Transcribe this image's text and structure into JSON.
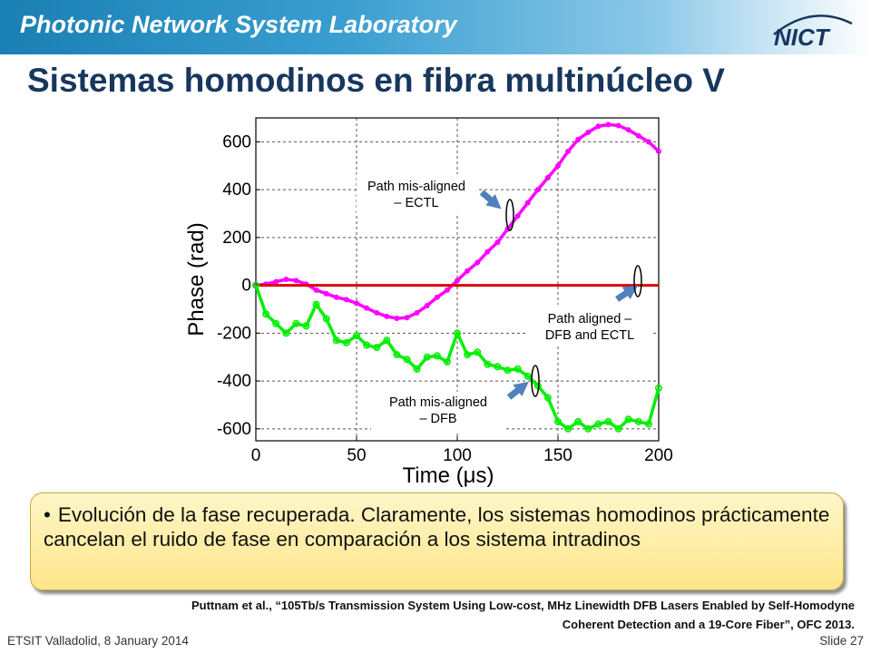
{
  "header": {
    "lab_name": "Photonic Network System Laboratory",
    "logo_text": "NICT"
  },
  "slide_title": "Sistemas homodinos en fibra multinúcleo V",
  "chart_data": {
    "type": "line",
    "xlabel": "Time (μs)",
    "ylabel": "Phase (rad)",
    "xlim": [
      0,
      200
    ],
    "ylim": [
      -650,
      700
    ],
    "xticks": [
      0,
      50,
      100,
      150,
      200
    ],
    "yticks": [
      -600,
      -400,
      -200,
      0,
      200,
      400,
      600
    ],
    "grid": true,
    "series": [
      {
        "color": "#ff00ff",
        "x": [
          0,
          5,
          10,
          15,
          20,
          25,
          30,
          35,
          40,
          45,
          50,
          55,
          60,
          65,
          70,
          75,
          80,
          85,
          90,
          95,
          100,
          105,
          110,
          115,
          120,
          125,
          130,
          135,
          140,
          145,
          150,
          155,
          160,
          165,
          170,
          175,
          180,
          185,
          190,
          195,
          200
        ],
        "values": [
          0,
          5,
          15,
          25,
          20,
          5,
          -20,
          -35,
          -50,
          -60,
          -75,
          -95,
          -115,
          -130,
          -138,
          -135,
          -115,
          -85,
          -50,
          -20,
          20,
          60,
          95,
          140,
          180,
          235,
          290,
          345,
          400,
          450,
          500,
          560,
          610,
          640,
          665,
          672,
          668,
          650,
          625,
          600,
          560
        ]
      },
      {
        "color": "#e00000",
        "x": [
          0,
          50,
          100,
          150,
          200
        ],
        "values": [
          0,
          0,
          0,
          0,
          0
        ]
      },
      {
        "color": "#00ee00",
        "x": [
          0,
          5,
          10,
          15,
          20,
          25,
          30,
          35,
          40,
          45,
          50,
          55,
          60,
          65,
          70,
          75,
          80,
          85,
          90,
          95,
          100,
          105,
          110,
          115,
          120,
          125,
          130,
          135,
          140,
          145,
          150,
          155,
          160,
          165,
          170,
          175,
          180,
          185,
          190,
          195,
          200
        ],
        "values": [
          0,
          -120,
          -160,
          -200,
          -160,
          -170,
          -80,
          -140,
          -230,
          -240,
          -210,
          -250,
          -260,
          -230,
          -290,
          -310,
          -350,
          -300,
          -295,
          -320,
          -200,
          -290,
          -280,
          -330,
          -340,
          -355,
          -350,
          -380,
          -420,
          -470,
          -570,
          -600,
          -570,
          -600,
          -580,
          -570,
          -600,
          -560,
          -570,
          -580,
          -430
        ]
      }
    ],
    "annotations": [
      {
        "line1": "Path mis-aligned",
        "line2": "– ECTL"
      },
      {
        "line1": "Path aligned –",
        "line2": "DFB and ECTL"
      },
      {
        "line1": "Path mis-aligned",
        "line2": "– DFB"
      }
    ]
  },
  "callout": {
    "bullet": "•",
    "text": "Evolución de la fase recuperada. Claramente, los sistemas homodinos prácticamente cancelan el ruido de fase en comparación a los sistema intradinos"
  },
  "reference": {
    "line1": "Puttnam et al., “105Tb/s Transmission System Using Low-cost, MHz Linewidth DFB Lasers Enabled by Self-Homodyne",
    "line2": "Coherent Detection and a 19-Core Fiber”, OFC 2013."
  },
  "footer": {
    "left": "ETSIT Valladolid, 8 January 2014",
    "right": "Slide 27"
  }
}
